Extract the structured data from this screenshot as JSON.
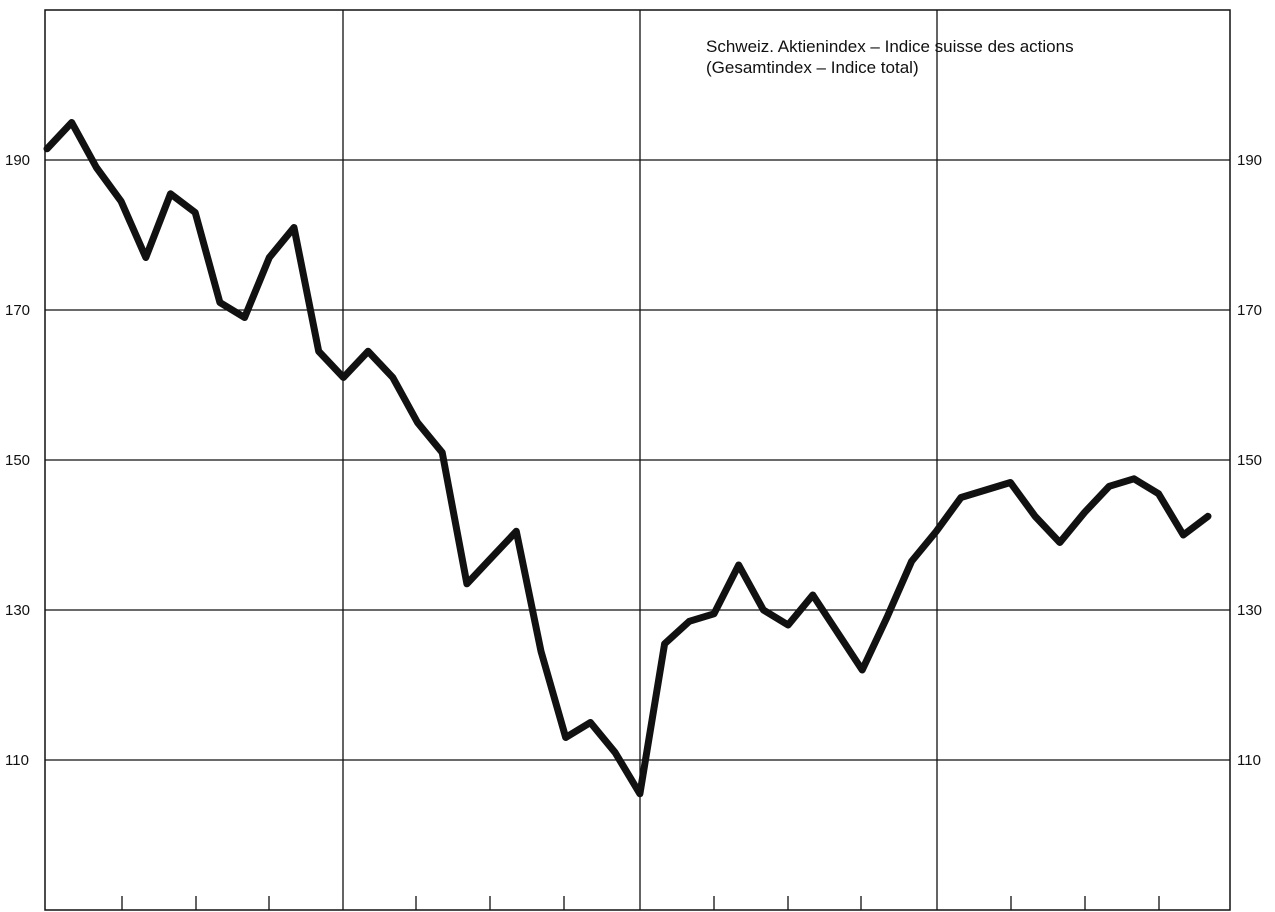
{
  "chart_data": {
    "type": "line",
    "title": "Schweiz. Aktienindex – Indice suisse des actions",
    "subtitle": "(Gesamtindex – Indice total)",
    "xlabel": "",
    "ylabel": "",
    "ylim": [
      80,
      210
    ],
    "y_ticks": [
      110,
      130,
      150,
      170,
      190
    ],
    "y_tick_labels_left": [
      "110",
      "130",
      "150",
      "170",
      "190"
    ],
    "y_tick_labels_right": [
      "110",
      "130",
      "150",
      "170",
      "190"
    ],
    "grid": true,
    "series": [
      {
        "values": [
          191.5,
          195,
          189,
          184.5,
          177,
          185.5,
          183,
          171,
          169,
          177,
          181,
          164.5,
          161,
          164.5,
          161,
          155,
          151,
          133.5,
          137,
          140.5,
          124.5,
          113,
          115,
          111,
          105.5,
          125.5,
          128.5,
          129.5,
          136,
          130,
          128,
          132,
          127,
          122,
          129,
          136.5,
          140.5,
          145,
          146,
          147,
          142.5,
          139,
          143,
          146.5,
          147.5,
          145.5,
          140,
          142.5
        ]
      }
    ],
    "line_color": "#111111"
  }
}
